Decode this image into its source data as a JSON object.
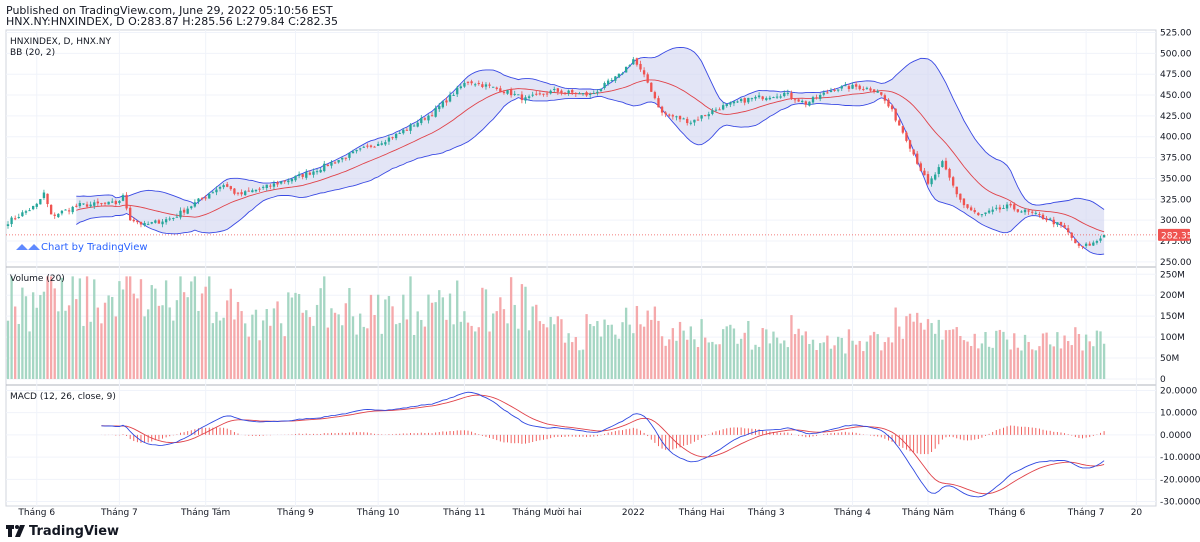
{
  "header": {
    "published": "Published on TradingView.com, June 29, 2022 05:10:56 EST",
    "ohlc_line": "HNX.NY:HNXINDEX, D O:283.87 H:285.56 L:279.84 C:282.35"
  },
  "footer": {
    "brand": "TradingView"
  },
  "colors": {
    "up": "#26a69a",
    "down": "#ef5350",
    "vol_up": "#a5d6c3",
    "vol_down": "#f5a9ab",
    "bb_fill": "#d1d4f0",
    "bb_band": "#3949e3",
    "bb_basis": "#e0434a",
    "macd": "#3049e0",
    "signal": "#e0434a",
    "hist": "#ef5350",
    "price_tag": "#ef5350"
  },
  "chart_data": [
    {
      "type": "candlestick",
      "pane": "price",
      "title": "HNXINDEX, D, HNX.NY",
      "indicator_label": "BB (20, 2)",
      "watermark": "Chart by TradingView",
      "ylim": [
        245,
        528
      ],
      "y_ticks": [
        250,
        275,
        300,
        325,
        350,
        375,
        400,
        425,
        450,
        475,
        500,
        525
      ],
      "y_tick_labels": [
        "250.00",
        "275.00",
        "300.00",
        "325.00",
        "350.00",
        "375.00",
        "400.00",
        "425.00",
        "450.00",
        "475.00",
        "500.00",
        "525.00"
      ],
      "last_price": 282.35,
      "last_price_label": "282.35",
      "anchors": [
        [
          0,
          298
        ],
        [
          8,
          318
        ],
        [
          10,
          332
        ],
        [
          12,
          305
        ],
        [
          20,
          318
        ],
        [
          30,
          320
        ],
        [
          32,
          328
        ],
        [
          34,
          302
        ],
        [
          38,
          294
        ],
        [
          46,
          303
        ],
        [
          56,
          332
        ],
        [
          60,
          343
        ],
        [
          64,
          330
        ],
        [
          72,
          340
        ],
        [
          84,
          357
        ],
        [
          96,
          380
        ],
        [
          108,
          402
        ],
        [
          118,
          428
        ],
        [
          126,
          460
        ],
        [
          128,
          467
        ],
        [
          134,
          460
        ],
        [
          140,
          452
        ],
        [
          144,
          445
        ],
        [
          152,
          455
        ],
        [
          162,
          450
        ],
        [
          170,
          473
        ],
        [
          174,
          493
        ],
        [
          178,
          465
        ],
        [
          182,
          428
        ],
        [
          190,
          418
        ],
        [
          198,
          435
        ],
        [
          206,
          445
        ],
        [
          216,
          452
        ],
        [
          222,
          440
        ],
        [
          230,
          458
        ],
        [
          236,
          460
        ],
        [
          242,
          456
        ],
        [
          246,
          430
        ],
        [
          250,
          398
        ],
        [
          256,
          342
        ],
        [
          260,
          368
        ],
        [
          264,
          332
        ],
        [
          266,
          318
        ],
        [
          270,
          305
        ],
        [
          278,
          316
        ],
        [
          284,
          309
        ],
        [
          290,
          300
        ],
        [
          294,
          290
        ],
        [
          298,
          267
        ],
        [
          302,
          272
        ],
        [
          305,
          282
        ]
      ]
    },
    {
      "type": "bar",
      "pane": "volume",
      "title": "Volume (20)",
      "ylim": [
        -12000000,
        265000000
      ],
      "y_tick_labels": [
        "250M",
        "200M",
        "150M",
        "100M",
        "50M",
        "0"
      ],
      "y_ticks": [
        250000000,
        200000000,
        150000000,
        100000000,
        50000000,
        0
      ]
    },
    {
      "type": "line",
      "pane": "macd",
      "title": "MACD (12, 26, close, 9)",
      "ylim": [
        -32000,
        22000
      ],
      "y_ticks": [
        20000,
        10000,
        0,
        -10000,
        -20000,
        -30000
      ],
      "y_tick_labels": [
        "20.0000",
        "10.0000",
        "0.0000",
        "-10.0000",
        "-20.0000",
        "-30.0000"
      ],
      "series": []
    }
  ],
  "x_axis": {
    "ticks": [
      {
        "label": "Tháng 6",
        "bar": 8
      },
      {
        "label": "Tháng 7",
        "bar": 31
      },
      {
        "label": "Tháng Tám",
        "bar": 55
      },
      {
        "label": "Tháng 9",
        "bar": 80
      },
      {
        "label": "Tháng 10",
        "bar": 103
      },
      {
        "label": "Tháng 11",
        "bar": 127
      },
      {
        "label": "Tháng Mười hai",
        "bar": 150
      },
      {
        "label": "2022",
        "bar": 174
      },
      {
        "label": "Tháng Hai",
        "bar": 193
      },
      {
        "label": "Tháng 3",
        "bar": 211
      },
      {
        "label": "Tháng 4",
        "bar": 235
      },
      {
        "label": "Tháng Năm",
        "bar": 256
      },
      {
        "label": "Tháng 6",
        "bar": 278
      },
      {
        "label": "Tháng 7",
        "bar": 300
      },
      {
        "label": "20",
        "bar": 314
      }
    ]
  }
}
